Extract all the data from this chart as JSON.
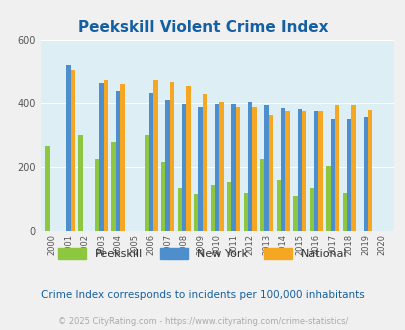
{
  "title": "Peekskill Violent Crime Index",
  "title_color": "#1560a0",
  "background_color": "#f0f0f0",
  "plot_bg_color": "#ddeef5",
  "years": [
    2000,
    2001,
    2002,
    2003,
    2004,
    2005,
    2006,
    2007,
    2008,
    2009,
    2010,
    2011,
    2012,
    2013,
    2014,
    2015,
    2016,
    2017,
    2018,
    2019,
    2020
  ],
  "peekskill": [
    265,
    0,
    300,
    225,
    280,
    0,
    300,
    215,
    135,
    115,
    145,
    155,
    120,
    225,
    160,
    110,
    135,
    205,
    120,
    0,
    0
  ],
  "new_york": [
    0,
    520,
    0,
    465,
    440,
    0,
    432,
    410,
    398,
    388,
    398,
    398,
    405,
    395,
    385,
    382,
    375,
    352,
    352,
    358,
    0
  ],
  "national": [
    0,
    506,
    0,
    472,
    462,
    0,
    474,
    468,
    455,
    428,
    403,
    390,
    388,
    365,
    376,
    376,
    376,
    395,
    396,
    379,
    0
  ],
  "peekskill_color": "#8dc63f",
  "new_york_color": "#4d8fcc",
  "national_color": "#f5a623",
  "ylim": [
    0,
    600
  ],
  "yticks": [
    0,
    200,
    400,
    600
  ],
  "subtitle": "Crime Index corresponds to incidents per 100,000 inhabitants",
  "subtitle_color": "#1560a0",
  "footer": "© 2025 CityRating.com - https://www.cityrating.com/crime-statistics/",
  "footer_color": "#aaaaaa",
  "legend_labels": [
    "Peekskill",
    "New York",
    "National"
  ],
  "bar_width": 0.27
}
